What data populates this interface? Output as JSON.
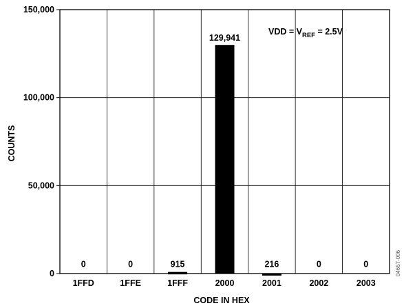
{
  "chart_data": {
    "type": "bar",
    "categories": [
      "1FFD",
      "1FFE",
      "1FFF",
      "2000",
      "2001",
      "2002",
      "2003"
    ],
    "values": [
      0,
      0,
      915,
      129941,
      216,
      0,
      0
    ],
    "data_labels": [
      "0",
      "0",
      "915",
      "129,941",
      "216",
      "0",
      "0"
    ],
    "xlabel": "CODE IN HEX",
    "ylabel": "COUNTS",
    "ylim": [
      0,
      150000
    ],
    "yticks": [
      0,
      50000,
      100000,
      150000
    ],
    "ytick_labels": [
      "0",
      "50,000",
      "100,000",
      "150,000"
    ],
    "annotation": {
      "prefix": "VDD = V",
      "subscript": "REF",
      "suffix": " = 2.5V"
    },
    "figure_code": "04657-006",
    "grid": true,
    "bar_color": "#000000"
  }
}
